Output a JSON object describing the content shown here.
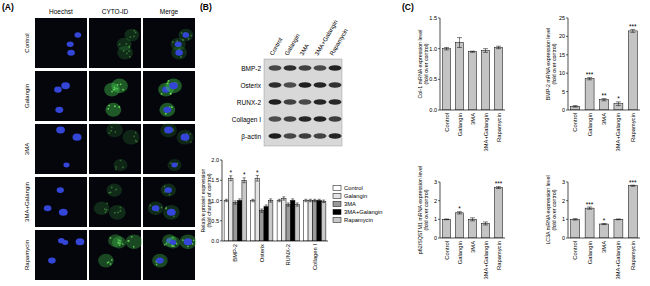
{
  "chart_data": [
    {
      "type": "bar",
      "y_label": "Relative protein expression (fold change of control)",
      "categories": [
        "BMP-2",
        "Osterix",
        "RUNX-2",
        "Collagen I"
      ],
      "ylim": [
        0,
        2
      ],
      "yticks": [
        {
          "value": 0,
          "label": "0.0"
        },
        {
          "value": 0.5,
          "label": "0.5"
        },
        {
          "value": 1,
          "label": "1.0"
        },
        {
          "value": 1.5,
          "label": "1.5"
        },
        {
          "value": 2,
          "label": "2.0"
        }
      ],
      "grid": false,
      "legend": "right",
      "series": [
        {
          "name": "Control",
          "color": "#ffffff",
          "values": [
            1.0,
            1.0,
            1.0,
            1.0
          ],
          "errors": [
            0.03,
            0.03,
            0.03,
            0.03
          ],
          "significance": [
            null,
            null,
            null,
            null
          ]
        },
        {
          "name": "Galangin",
          "color": "#e3e3e3",
          "values": [
            1.55,
            1.55,
            1.05,
            1.0
          ],
          "errors": [
            0.06,
            0.07,
            0.04,
            0.03
          ],
          "significance": [
            "*",
            "*",
            null,
            null
          ]
        },
        {
          "name": "3MA",
          "color": "#9a9a9a",
          "values": [
            0.95,
            0.75,
            0.9,
            1.0
          ],
          "errors": [
            0.04,
            0.04,
            0.04,
            0.03
          ],
          "significance": [
            null,
            null,
            null,
            null
          ]
        },
        {
          "name": "3MA+Galangin",
          "color": "#000000",
          "values": [
            1.0,
            0.85,
            1.0,
            1.0
          ],
          "errors": [
            0.04,
            0.04,
            0.04,
            0.03
          ],
          "significance": [
            null,
            null,
            null,
            null
          ]
        },
        {
          "name": "Rapamycin",
          "color": "#c8c8c8",
          "values": [
            1.5,
            1.0,
            0.9,
            0.98
          ],
          "errors": [
            0.06,
            0.04,
            0.04,
            0.03
          ],
          "significance": [
            "*",
            null,
            null,
            null
          ]
        }
      ]
    },
    {
      "type": "bar",
      "y_label": "Col-1 mRNA expression level (fold over control)",
      "categories": [
        "Control",
        "Galangin",
        "3MA",
        "3MA+Galangin",
        "Rapamycin"
      ],
      "ylim": [
        0,
        1.5
      ],
      "yticks": [
        {
          "value": 0,
          "label": "0.0"
        },
        {
          "value": 0.5,
          "label": "0.5"
        },
        {
          "value": 1,
          "label": "1.0"
        },
        {
          "value": 1.5,
          "label": "1.5"
        }
      ],
      "grid": false,
      "color": "#c4c4c4",
      "values": [
        1.0,
        1.1,
        0.95,
        0.97,
        1.02
      ],
      "errors": [
        0.02,
        0.08,
        0.01,
        0.03,
        0.02
      ],
      "significance": [
        null,
        null,
        null,
        null,
        null
      ]
    },
    {
      "type": "bar",
      "y_label": "BMP-2 mRNA expression level (fold over control)",
      "categories": [
        "Control",
        "Galangin",
        "3MA",
        "3MA+Galangin",
        "Rapamycin"
      ],
      "ylim": [
        0,
        25
      ],
      "yticks": [
        0,
        5,
        10,
        15,
        20,
        25
      ],
      "grid": false,
      "color": "#c4c4c4",
      "values": [
        1.0,
        8.5,
        2.8,
        1.7,
        21.5
      ],
      "errors": [
        0.2,
        0.3,
        0.3,
        0.5,
        0.4
      ],
      "significance": [
        null,
        "***",
        "**",
        "*",
        "***"
      ]
    },
    {
      "type": "bar",
      "y_label": "p62/SQSTM1 mRNA expression level (fold over control)",
      "categories": [
        "Control",
        "Galangin",
        "3MA",
        "3MA+Galangin",
        "Rapamycin"
      ],
      "ylim": [
        0,
        3
      ],
      "yticks": [
        0,
        1,
        2,
        3
      ],
      "grid": false,
      "color": "#c4c4c4",
      "values": [
        1.0,
        1.35,
        1.0,
        0.78,
        2.7
      ],
      "errors": [
        0.02,
        0.06,
        0.08,
        0.08,
        0.05
      ],
      "significance": [
        null,
        "*",
        null,
        null,
        "***"
      ]
    },
    {
      "type": "bar",
      "y_label": "LC3A mRNA expression level (fold over control)",
      "categories": [
        "Control",
        "Galangin",
        "3MA",
        "3MA+Galangin",
        "Rapamycin"
      ],
      "ylim": [
        0,
        3
      ],
      "yticks": [
        0,
        1,
        2,
        3
      ],
      "grid": false,
      "color": "#c4c4c4",
      "values": [
        1.0,
        1.6,
        0.75,
        1.0,
        2.8
      ],
      "errors": [
        0.04,
        0.06,
        0.03,
        0.02,
        0.03
      ],
      "significance": [
        null,
        "***",
        "*",
        null,
        "***"
      ]
    }
  ],
  "figure": {
    "panel_labels": [
      "(A)",
      "(B)",
      "(C)"
    ],
    "panel_a": {
      "columns": [
        "Hoechst",
        "CYTO-ID",
        "Merge"
      ],
      "rows": [
        "Control",
        "Galangin",
        "3MA",
        "3MA+Galangin",
        "Rapamycin"
      ]
    },
    "panel_b_blot": {
      "lanes": [
        "Control",
        "Galangin",
        "3MA",
        "3MA+Galangin",
        "Rapamycin"
      ],
      "proteins": [
        "BMP-2",
        "Osterix",
        "RUNX-2",
        "Collagen I",
        "β-actin"
      ]
    }
  }
}
